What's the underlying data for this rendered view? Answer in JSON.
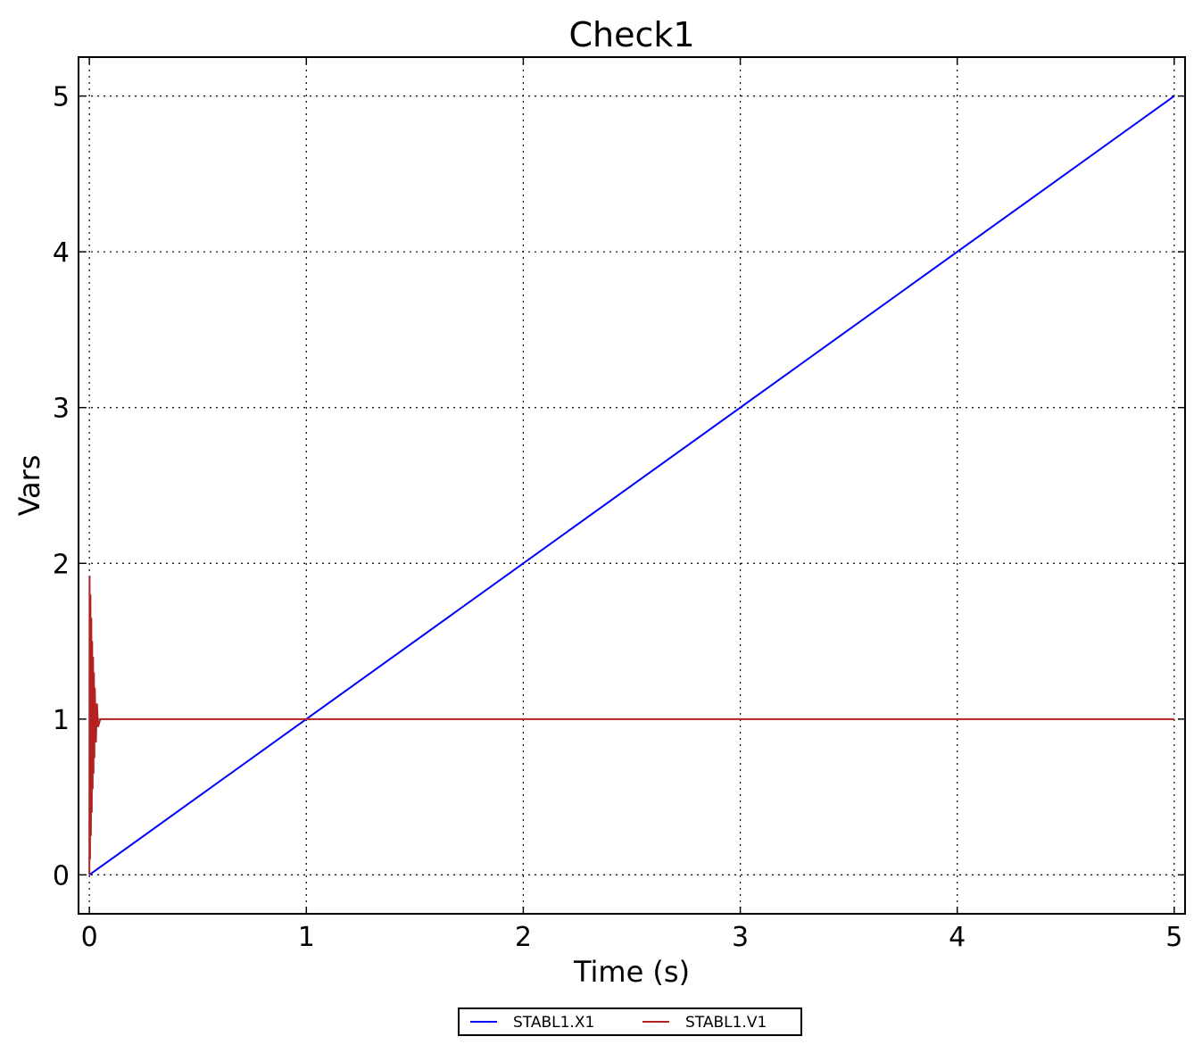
{
  "chart_data": {
    "type": "line",
    "title": "Check1",
    "x_label": "Time (s)",
    "y_label": "Vars",
    "xlim": [
      -0.05,
      5.05
    ],
    "ylim": [
      -0.25,
      5.25
    ],
    "xticks": [
      0,
      1,
      2,
      3,
      4,
      5
    ],
    "yticks": [
      0,
      1,
      2,
      3,
      4,
      5
    ],
    "grid": true,
    "legend": "bottom",
    "series": [
      {
        "name": "STABL1.X1",
        "color": "#0000ff",
        "x": [
          0,
          5
        ],
        "values": [
          0,
          5
        ]
      },
      {
        "name": "STABL1.V1",
        "color": "#b22222",
        "x": [
          0,
          0.001,
          0.003,
          0.005,
          0.007,
          0.009,
          0.011,
          0.013,
          0.015,
          0.017,
          0.019,
          0.021,
          0.023,
          0.025,
          0.03,
          0.035,
          0.04,
          0.05,
          5
        ],
        "values": [
          0,
          1.92,
          0.1,
          1.8,
          0.25,
          1.65,
          0.4,
          1.5,
          0.55,
          1.4,
          0.65,
          1.3,
          0.75,
          1.2,
          0.85,
          1.1,
          0.95,
          1,
          1
        ]
      }
    ]
  }
}
